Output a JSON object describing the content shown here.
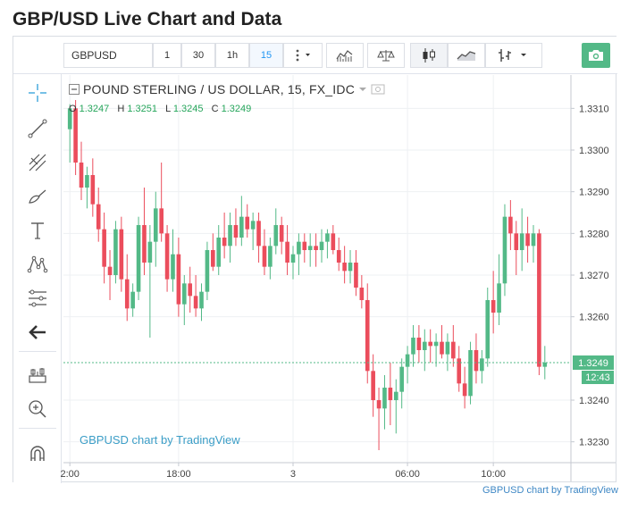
{
  "page_title": "GBP/USD Live Chart and Data",
  "toolbar": {
    "symbol": "GBPUSD",
    "intervals": [
      "1",
      "30",
      "1h",
      "15"
    ],
    "active_interval": "15"
  },
  "legend": {
    "title": "POUND STERLING / US DOLLAR, 15, FX_IDC",
    "open_label": "O",
    "open": "1.3247",
    "high_label": "H",
    "high": "1.3251",
    "low_label": "L",
    "low": "1.3245",
    "close_label": "C",
    "close": "1.3249"
  },
  "price_axis": {
    "ticks": [
      "1.3310",
      "1.3300",
      "1.3290",
      "1.3280",
      "1.3270",
      "1.3260",
      "1.3240",
      "1.3230"
    ],
    "current_price": "1.3249",
    "countdown": "12:43"
  },
  "time_axis": {
    "ticks": [
      "2:00",
      "18:00",
      "3",
      "06:00",
      "10:00"
    ]
  },
  "watermark": "GBPUSD chart by TradingView",
  "footer_link": "GBPUSD chart by TradingView",
  "colors": {
    "up": "#53b987",
    "down": "#eb4d5c",
    "accent": "#2196f3",
    "price_label": "#53b987"
  },
  "chart_data": {
    "type": "candlestick",
    "title": "POUND STERLING / US DOLLAR, 15, FX_IDC",
    "ylim": [
      1.3225,
      1.3318
    ],
    "x_ticks": [
      "2:00",
      "18:00",
      "3",
      "06:00",
      "10:00"
    ],
    "current_price": 1.3249,
    "candles": [
      [
        1.3305,
        1.3311,
        1.3297,
        1.331
      ],
      [
        1.331,
        1.3312,
        1.3294,
        1.3297
      ],
      [
        1.3297,
        1.3302,
        1.3288,
        1.3291
      ],
      [
        1.3291,
        1.3296,
        1.3286,
        1.3294
      ],
      [
        1.3294,
        1.3298,
        1.3284,
        1.3287
      ],
      [
        1.3287,
        1.3291,
        1.3278,
        1.3281
      ],
      [
        1.3281,
        1.3285,
        1.3268,
        1.3272
      ],
      [
        1.3272,
        1.3276,
        1.3264,
        1.327
      ],
      [
        1.327,
        1.3283,
        1.3268,
        1.3281
      ],
      [
        1.3281,
        1.3284,
        1.3266,
        1.3269
      ],
      [
        1.3269,
        1.3275,
        1.3259,
        1.3262
      ],
      [
        1.3262,
        1.3268,
        1.326,
        1.3266
      ],
      [
        1.3266,
        1.3284,
        1.3264,
        1.3282
      ],
      [
        1.3282,
        1.3291,
        1.327,
        1.3273
      ],
      [
        1.3273,
        1.3282,
        1.3255,
        1.3278
      ],
      [
        1.3278,
        1.329,
        1.3272,
        1.3286
      ],
      [
        1.3286,
        1.3297,
        1.3278,
        1.328
      ],
      [
        1.328,
        1.3282,
        1.3266,
        1.3269
      ],
      [
        1.3269,
        1.3281,
        1.3266,
        1.3275
      ],
      [
        1.3275,
        1.3279,
        1.326,
        1.3263
      ],
      [
        1.3263,
        1.327,
        1.3258,
        1.3268
      ],
      [
        1.3268,
        1.3272,
        1.3261,
        1.3265
      ],
      [
        1.3265,
        1.327,
        1.326,
        1.3262
      ],
      [
        1.3262,
        1.3268,
        1.3259,
        1.3266
      ],
      [
        1.3266,
        1.3278,
        1.3264,
        1.3276
      ],
      [
        1.3276,
        1.328,
        1.3271,
        1.3272
      ],
      [
        1.3272,
        1.3282,
        1.327,
        1.3279
      ],
      [
        1.3279,
        1.3285,
        1.3274,
        1.3277
      ],
      [
        1.3277,
        1.3285,
        1.3273,
        1.3282
      ],
      [
        1.3282,
        1.3286,
        1.3277,
        1.3279
      ],
      [
        1.3279,
        1.3289,
        1.3277,
        1.3284
      ],
      [
        1.3284,
        1.3287,
        1.3279,
        1.3281
      ],
      [
        1.3281,
        1.3285,
        1.3276,
        1.3283
      ],
      [
        1.3283,
        1.3285,
        1.3273,
        1.3277
      ],
      [
        1.3277,
        1.3281,
        1.327,
        1.3272
      ],
      [
        1.3272,
        1.3279,
        1.3269,
        1.3277
      ],
      [
        1.3277,
        1.3286,
        1.3275,
        1.3282
      ],
      [
        1.3282,
        1.3284,
        1.3275,
        1.3278
      ],
      [
        1.3278,
        1.3282,
        1.327,
        1.3273
      ],
      [
        1.3273,
        1.3277,
        1.3269,
        1.3275
      ],
      [
        1.3275,
        1.328,
        1.327,
        1.3278
      ],
      [
        1.3278,
        1.328,
        1.3273,
        1.3276
      ],
      [
        1.3276,
        1.328,
        1.3272,
        1.3277
      ],
      [
        1.3277,
        1.328,
        1.3272,
        1.3276
      ],
      [
        1.3276,
        1.3281,
        1.3273,
        1.3278
      ],
      [
        1.3278,
        1.3281,
        1.3274,
        1.328
      ],
      [
        1.328,
        1.3282,
        1.3275,
        1.3276
      ],
      [
        1.3276,
        1.3279,
        1.3271,
        1.3273
      ],
      [
        1.3273,
        1.3277,
        1.3268,
        1.3271
      ],
      [
        1.3271,
        1.3276,
        1.3268,
        1.3273
      ],
      [
        1.3273,
        1.3276,
        1.3265,
        1.3267
      ],
      [
        1.3267,
        1.327,
        1.3262,
        1.3264
      ],
      [
        1.3264,
        1.3268,
        1.3244,
        1.3247
      ],
      [
        1.3247,
        1.3251,
        1.3236,
        1.324
      ],
      [
        1.324,
        1.3243,
        1.3228,
        1.3238
      ],
      [
        1.3238,
        1.3246,
        1.3233,
        1.3243
      ],
      [
        1.3243,
        1.3249,
        1.3234,
        1.324
      ],
      [
        1.324,
        1.3245,
        1.3232,
        1.3242
      ],
      [
        1.3242,
        1.325,
        1.3238,
        1.3248
      ],
      [
        1.3248,
        1.3253,
        1.3244,
        1.3251
      ],
      [
        1.3251,
        1.3258,
        1.3248,
        1.3255
      ],
      [
        1.3255,
        1.3258,
        1.3249,
        1.3252
      ],
      [
        1.3252,
        1.3257,
        1.3247,
        1.3254
      ],
      [
        1.3254,
        1.3257,
        1.3249,
        1.3253
      ],
      [
        1.3253,
        1.3256,
        1.3248,
        1.3254
      ],
      [
        1.3254,
        1.3258,
        1.325,
        1.3251
      ],
      [
        1.3251,
        1.3256,
        1.3247,
        1.3254
      ],
      [
        1.3254,
        1.3258,
        1.3248,
        1.325
      ],
      [
        1.325,
        1.3253,
        1.3242,
        1.3244
      ],
      [
        1.3244,
        1.3248,
        1.3238,
        1.3241
      ],
      [
        1.3241,
        1.3254,
        1.3239,
        1.3252
      ],
      [
        1.3252,
        1.3256,
        1.3244,
        1.3247
      ],
      [
        1.3247,
        1.3252,
        1.3244,
        1.325
      ],
      [
        1.325,
        1.3267,
        1.3248,
        1.3264
      ],
      [
        1.3264,
        1.3271,
        1.3256,
        1.3261
      ],
      [
        1.3261,
        1.3275,
        1.3258,
        1.3268
      ],
      [
        1.3268,
        1.3287,
        1.3265,
        1.3284
      ],
      [
        1.3284,
        1.3288,
        1.3276,
        1.328
      ],
      [
        1.328,
        1.3283,
        1.327,
        1.3276
      ],
      [
        1.3276,
        1.3286,
        1.3271,
        1.328
      ],
      [
        1.328,
        1.3284,
        1.3273,
        1.3277
      ],
      [
        1.3277,
        1.3282,
        1.3273,
        1.328
      ],
      [
        1.328,
        1.3281,
        1.3246,
        1.3248
      ],
      [
        1.3248,
        1.3253,
        1.3245,
        1.3249
      ]
    ]
  }
}
